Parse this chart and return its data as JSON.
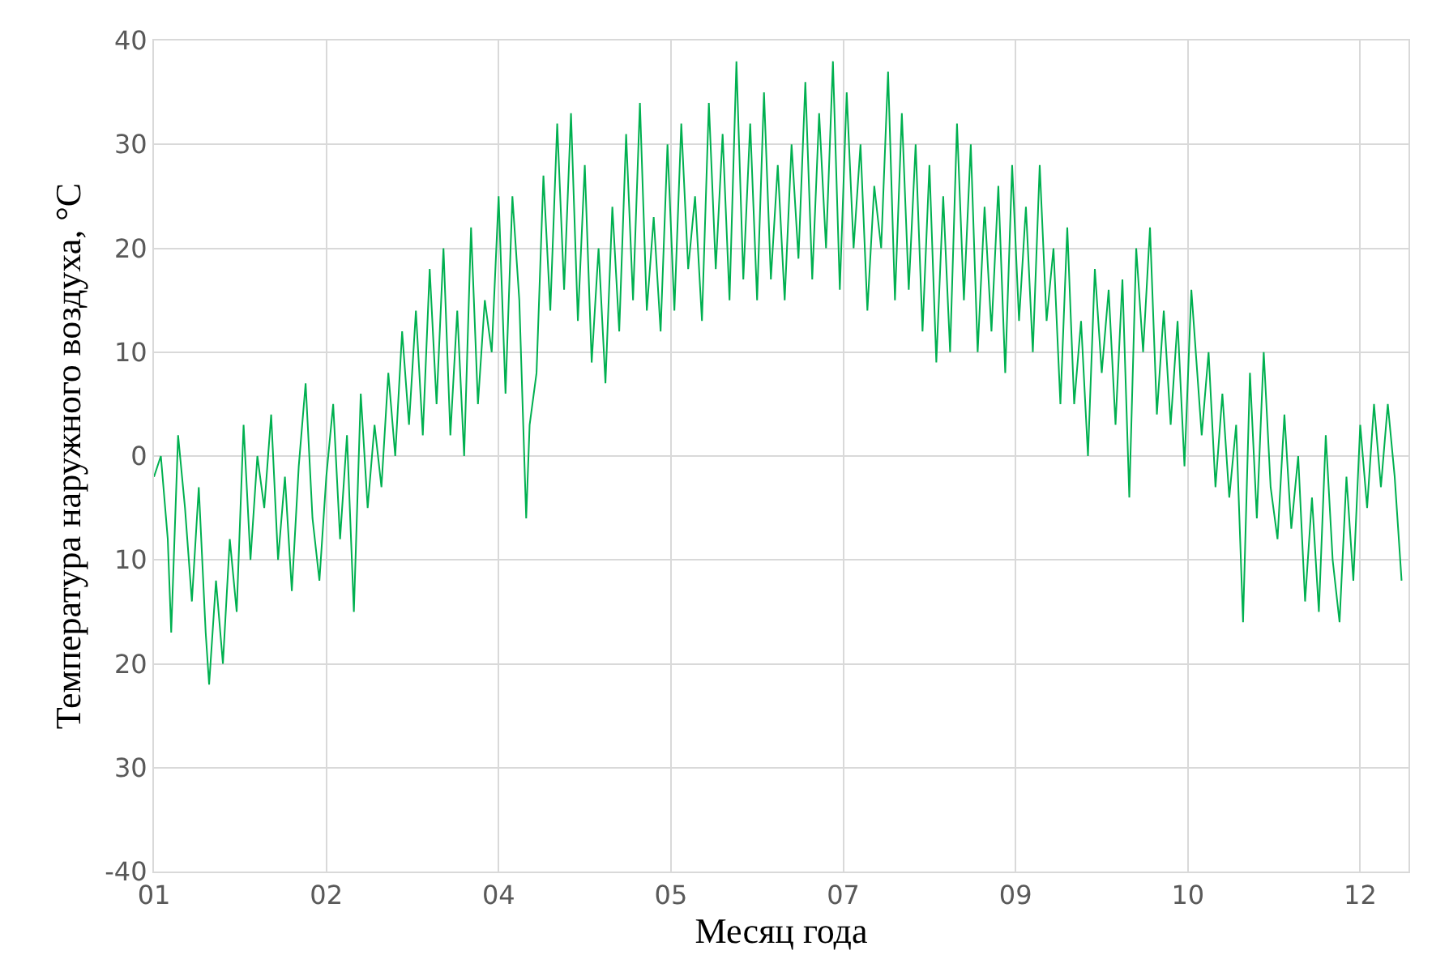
{
  "chart_data": {
    "type": "line",
    "xlabel": "Месяц года",
    "ylabel": "Температура наружного воздуха, °С",
    "x": [
      "--01-01",
      "--01-03",
      "--01-05",
      "--01-06",
      "--01-08",
      "--01-10",
      "--01-12",
      "--01-14",
      "--01-16",
      "--01-17",
      "--01-19",
      "--01-21",
      "--01-23",
      "--01-25",
      "--01-27",
      "--01-29",
      "--01-31",
      "--02-02",
      "--02-04",
      "--02-06",
      "--02-08",
      "--02-10",
      "--02-12",
      "--02-14",
      "--02-16",
      "--02-18",
      "--02-20",
      "--02-22",
      "--02-24",
      "--02-26",
      "--02-28",
      "--03-02",
      "--03-04",
      "--03-06",
      "--03-08",
      "--03-10",
      "--03-12",
      "--03-14",
      "--03-16",
      "--03-18",
      "--03-20",
      "--03-22",
      "--03-24",
      "--03-26",
      "--03-28",
      "--03-30",
      "--04-01",
      "--04-03",
      "--04-05",
      "--04-07",
      "--04-09",
      "--04-11",
      "--04-13",
      "--04-15",
      "--04-17",
      "--04-19",
      "--04-20",
      "--04-22",
      "--04-24",
      "--04-26",
      "--04-28",
      "--04-30",
      "--05-02",
      "--05-04",
      "--05-06",
      "--05-08",
      "--05-10",
      "--05-12",
      "--05-14",
      "--05-16",
      "--05-18",
      "--05-20",
      "--05-22",
      "--05-24",
      "--05-26",
      "--05-28",
      "--05-30",
      "--06-01",
      "--06-03",
      "--06-05",
      "--06-07",
      "--06-09",
      "--06-11",
      "--06-13",
      "--06-15",
      "--06-17",
      "--06-19",
      "--06-21",
      "--06-23",
      "--06-25",
      "--06-27",
      "--06-29",
      "--07-01",
      "--07-03",
      "--07-05",
      "--07-07",
      "--07-09",
      "--07-11",
      "--07-13",
      "--07-15",
      "--07-17",
      "--07-19",
      "--07-21",
      "--07-23",
      "--07-25",
      "--07-27",
      "--07-29",
      "--07-31",
      "--08-02",
      "--08-04",
      "--08-06",
      "--08-08",
      "--08-10",
      "--08-12",
      "--08-14",
      "--08-16",
      "--08-18",
      "--08-20",
      "--08-22",
      "--08-24",
      "--08-26",
      "--08-28",
      "--08-30",
      "--09-01",
      "--09-03",
      "--09-05",
      "--09-07",
      "--09-09",
      "--09-11",
      "--09-13",
      "--09-15",
      "--09-17",
      "--09-19",
      "--09-21",
      "--09-23",
      "--09-25",
      "--09-27",
      "--09-29",
      "--10-01",
      "--10-03",
      "--10-05",
      "--10-07",
      "--10-09",
      "--10-11",
      "--10-13",
      "--10-15",
      "--10-17",
      "--10-19",
      "--10-21",
      "--10-23",
      "--10-25",
      "--10-27",
      "--10-29",
      "--11-01",
      "--11-03",
      "--11-05",
      "--11-07",
      "--11-09",
      "--11-11",
      "--11-13",
      "--11-15",
      "--11-17",
      "--11-19",
      "--11-21",
      "--11-23",
      "--11-25",
      "--11-27",
      "--11-29",
      "--12-01",
      "--12-03",
      "--12-05",
      "--12-07",
      "--12-09",
      "--12-11",
      "--12-13",
      "--12-15",
      "--12-17",
      "--12-19",
      "--12-21",
      "--12-23",
      "--12-25",
      "--12-27",
      "--12-29"
    ],
    "series": [
      {
        "color": "#00b050",
        "values": [
          -2,
          0,
          -8,
          -17,
          2,
          -5,
          -14,
          -3,
          -17,
          -22,
          -12,
          -20,
          -8,
          -15,
          3,
          -10,
          0,
          -5,
          4,
          -10,
          -2,
          -13,
          -1,
          7,
          -6,
          -12,
          -2,
          5,
          -8,
          2,
          -15,
          6,
          -5,
          3,
          -3,
          8,
          0,
          12,
          3,
          14,
          2,
          18,
          5,
          20,
          2,
          14,
          0,
          22,
          5,
          15,
          10,
          25,
          6,
          25,
          15,
          -6,
          3,
          8,
          27,
          14,
          32,
          16,
          33,
          13,
          28,
          9,
          20,
          7,
          24,
          12,
          31,
          15,
          34,
          14,
          23,
          12,
          30,
          14,
          32,
          18,
          25,
          13,
          34,
          18,
          31,
          15,
          38,
          17,
          32,
          15,
          35,
          17,
          28,
          15,
          30,
          19,
          36,
          17,
          33,
          20,
          38,
          16,
          35,
          20,
          30,
          14,
          26,
          20,
          37,
          15,
          33,
          16,
          30,
          12,
          28,
          9,
          25,
          10,
          32,
          15,
          30,
          10,
          24,
          12,
          26,
          8,
          28,
          13,
          24,
          10,
          28,
          13,
          20,
          5,
          22,
          5,
          13,
          0,
          18,
          8,
          16,
          3,
          17,
          -4,
          20,
          10,
          22,
          4,
          14,
          3,
          13,
          -1,
          16,
          2,
          10,
          -3,
          6,
          -4,
          3,
          -16,
          8,
          -6,
          10,
          -3,
          -8,
          4,
          -7,
          0,
          -14,
          -4,
          -15,
          2,
          -10,
          -16,
          -2,
          -12,
          3,
          -5,
          5,
          -3,
          5,
          -2,
          -12
        ]
      }
    ],
    "xlim": [
      "--01-01",
      "--12-31"
    ],
    "xticks": [
      {
        "value": "--01-01",
        "label": "01"
      },
      {
        "value": "--02-20",
        "label": "02"
      },
      {
        "value": "--04-11",
        "label": "04"
      },
      {
        "value": "--05-31",
        "label": "05"
      },
      {
        "value": "--07-20",
        "label": "07"
      },
      {
        "value": "--09-08",
        "label": "09"
      },
      {
        "value": "--10-28",
        "label": "10"
      },
      {
        "value": "--12-17",
        "label": "12"
      }
    ],
    "ylim": [
      -40,
      40
    ],
    "yticks": [
      40,
      30,
      20,
      10,
      0,
      {
        "value": -10,
        "label": "10"
      },
      {
        "value": -20,
        "label": "20"
      },
      {
        "value": -30,
        "label": "30"
      },
      -40
    ],
    "grid": true,
    "marker": "none",
    "line_style": "solid"
  }
}
